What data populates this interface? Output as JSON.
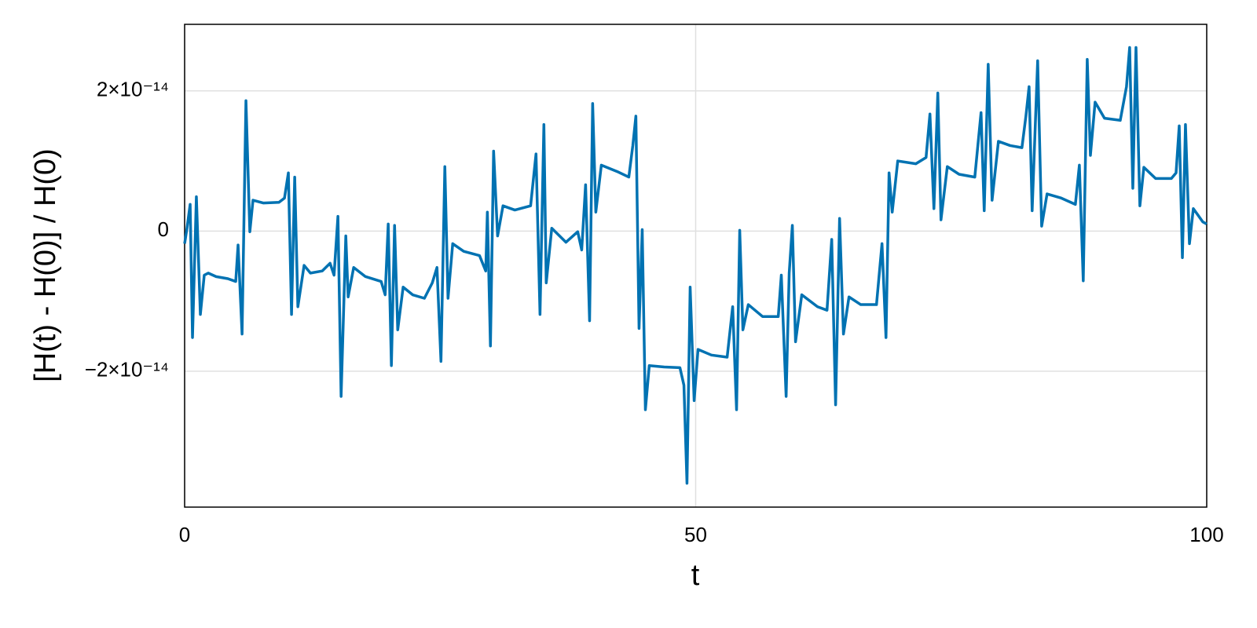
{
  "chart_data": {
    "type": "line",
    "xlabel": "t",
    "ylabel": "[H(t) - H(0)] / H(0)",
    "color": "#0072b2",
    "grid": true,
    "xlim": [
      0,
      100
    ],
    "xticks": [
      0,
      50,
      100
    ],
    "ylim": [
      -3.94e-14,
      2.95e-14
    ],
    "yticks": [
      {
        "value": -2e-14,
        "label": "−2×10⁻¹⁴"
      },
      0,
      {
        "value": 2e-14,
        "label": "2×10⁻¹⁴"
      }
    ],
    "x": [
      0,
      0.23,
      0.54,
      0.77,
      1.15,
      1.54,
      1.92,
      2.31,
      3.08,
      4.23,
      5,
      5.23,
      5.62,
      6,
      6.38,
      6.69,
      7.69,
      9.23,
      9.77,
      10.15,
      10.46,
      10.77,
      11.08,
      11.69,
      12.31,
      13.46,
      14.23,
      14.62,
      15,
      15.31,
      15.77,
      16,
      16.54,
      17.69,
      19.23,
      19.62,
      19.92,
      20.23,
      20.54,
      20.85,
      21.38,
      22.31,
      23.46,
      24.23,
      24.69,
      25.08,
      25.46,
      25.77,
      26.23,
      27.31,
      28.85,
      29.46,
      29.62,
      29.92,
      30.23,
      30.62,
      31.15,
      32.31,
      33.85,
      34.38,
      34.77,
      35.15,
      35.38,
      35.92,
      37.31,
      38.46,
      38.85,
      39.23,
      39.62,
      39.92,
      40.23,
      40.77,
      42.31,
      43.46,
      43.85,
      44.15,
      44.46,
      44.77,
      45.08,
      45.46,
      46.92,
      48.46,
      48.85,
      49.15,
      49.46,
      49.85,
      50.23,
      51.54,
      53.08,
      53.62,
      54,
      54.31,
      54.62,
      55.15,
      56.54,
      58.08,
      58.38,
      58.85,
      59.15,
      59.46,
      59.77,
      60.38,
      61.92,
      62.85,
      63.31,
      63.69,
      64.08,
      64.46,
      65,
      66.15,
      67.69,
      68.23,
      68.62,
      68.92,
      69.23,
      69.77,
      71.54,
      72.54,
      72.92,
      73.31,
      73.69,
      74,
      74.62,
      75.77,
      77.31,
      77.92,
      78.23,
      78.62,
      79,
      79.62,
      80.77,
      81.92,
      82.31,
      82.62,
      82.92,
      83.46,
      83.85,
      84.38,
      85.77,
      87.15,
      87.54,
      87.92,
      88.31,
      88.62,
      89.08,
      90,
      91.54,
      92.15,
      92.46,
      92.77,
      93.08,
      93.46,
      93.85,
      95,
      96.54,
      97,
      97.31,
      97.62,
      97.92,
      98.31,
      98.69,
      99.62,
      100
    ],
    "values": [
      -1.8e-15,
      4e-16,
      3.8e-15,
      -1.52e-14,
      4.9e-15,
      -1.19e-14,
      -6.3e-15,
      -6e-15,
      -6.5e-15,
      -6.8e-15,
      -7.2e-15,
      -2e-15,
      -1.47e-14,
      1.86e-14,
      -1e-16,
      4.4e-15,
      4e-15,
      4.1e-15,
      4.7e-15,
      8.3e-15,
      -1.19e-14,
      7.7e-15,
      -1.08e-14,
      -4.9e-15,
      -6e-15,
      -5.7e-15,
      -4.6e-15,
      -6.3e-15,
      2.1e-15,
      -2.36e-14,
      -7e-16,
      -9.4e-15,
      -5.2e-15,
      -6.5e-15,
      -7.2e-15,
      -9.1e-15,
      1e-15,
      -1.92e-14,
      8e-16,
      -1.41e-14,
      -8e-15,
      -9.1e-15,
      -9.6e-15,
      -7.4e-15,
      -5.2e-15,
      -1.86e-14,
      9.2e-15,
      -9.6e-15,
      -1.8e-15,
      -2.9e-15,
      -3.5e-15,
      -5.7e-15,
      2.7e-15,
      -1.64e-14,
      1.14e-14,
      -7e-16,
      3.6e-15,
      3e-15,
      3.6e-15,
      1.1e-14,
      -1.19e-14,
      1.52e-14,
      -7.4e-15,
      4e-16,
      -1.6e-15,
      -1e-16,
      -2.7e-15,
      6.6e-15,
      -1.28e-14,
      1.82e-14,
      2.7e-15,
      9.4e-15,
      8.5e-15,
      7.7e-15,
      1.22e-14,
      1.64e-14,
      -1.39e-14,
      2e-16,
      -2.55e-14,
      -1.92e-14,
      -1.94e-14,
      -1.95e-14,
      -2.2e-14,
      -3.6e-14,
      -8e-15,
      -2.42e-14,
      -1.69e-14,
      -1.77e-14,
      -1.8e-14,
      -1.08e-14,
      -2.55e-14,
      1e-16,
      -1.41e-14,
      -1.05e-14,
      -1.22e-14,
      -1.22e-14,
      -6.3e-15,
      -2.36e-14,
      -6e-15,
      8e-16,
      -1.58e-14,
      -9.1e-15,
      -1.08e-14,
      -1.13e-14,
      -1.2e-15,
      -2.48e-14,
      1.8e-15,
      -1.47e-14,
      -9.4e-15,
      -1.05e-14,
      -1.05e-14,
      -1.8e-15,
      -1.52e-14,
      8.3e-15,
      2.7e-15,
      1e-14,
      9.6e-15,
      1.05e-14,
      1.67e-14,
      3.2e-15,
      1.97e-14,
      1.6e-15,
      9.2e-15,
      8.1e-15,
      7.7e-15,
      1.69e-14,
      2.9e-15,
      2.38e-14,
      4.4e-15,
      1.28e-14,
      1.22e-14,
      1.19e-14,
      1.64e-14,
      2.06e-14,
      2.9e-15,
      2.43e-14,
      7e-16,
      5.3e-15,
      4.7e-15,
      3.8e-15,
      9.4e-15,
      -7.1e-15,
      2.45e-14,
      1.08e-14,
      1.84e-14,
      1.61e-14,
      1.58e-14,
      2.06e-14,
      2.62e-14,
      6.1e-15,
      2.62e-14,
      3.6e-15,
      9.1e-15,
      7.5e-15,
      7.5e-15,
      8.3e-15,
      1.5e-14,
      -3.8e-15,
      1.52e-14,
      -1.8e-15,
      3.2e-15,
      1.3e-15,
      1e-15
    ]
  }
}
